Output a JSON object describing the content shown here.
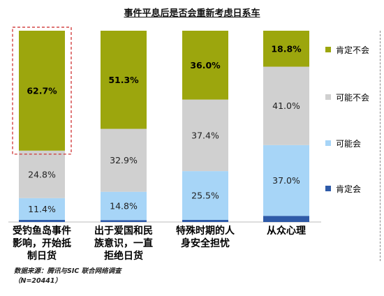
{
  "chart_data": {
    "type": "bar",
    "stacked": true,
    "percent": true,
    "title": "事件平息后是否会重新考虑日系车",
    "categories": [
      [
        "受钓鱼岛事件",
        "影响，开始抵",
        "制日货"
      ],
      [
        "出于爱国和民",
        "族意识，一直",
        "拒绝日货"
      ],
      [
        "特殊时期的人",
        "身安全担忧"
      ],
      [
        "从众心理"
      ]
    ],
    "series": [
      {
        "name": "肯定会",
        "color": "#2e5aa8",
        "values": [
          1.1,
          1.0,
          1.1,
          3.2
        ],
        "labels": [
          "",
          "",
          "",
          ""
        ],
        "label_color": "#222"
      },
      {
        "name": "可能会",
        "color": "#a7d5f7",
        "values": [
          11.4,
          14.8,
          25.5,
          37.0
        ],
        "labels": [
          "11.4%",
          "14.8%",
          "25.5%",
          "37.0%"
        ],
        "label_color": "#222"
      },
      {
        "name": "可能不会",
        "color": "#d0d0d0",
        "values": [
          24.8,
          32.9,
          37.4,
          41.0
        ],
        "labels": [
          "24.8%",
          "32.9%",
          "37.4%",
          "41.0%"
        ],
        "label_color": "#222"
      },
      {
        "name": "肯定不会",
        "color": "#9ca60d",
        "values": [
          62.7,
          51.3,
          36.0,
          18.8
        ],
        "labels": [
          "62.7%",
          "51.3%",
          "36.0%",
          "18.8%"
        ],
        "label_color": "#000"
      }
    ],
    "ylim": [
      0,
      100
    ],
    "highlight_category": 0
  },
  "source": {
    "line1": "数据来源：腾讯与SIC 联合网络调查",
    "line2": "（N=20441）"
  }
}
